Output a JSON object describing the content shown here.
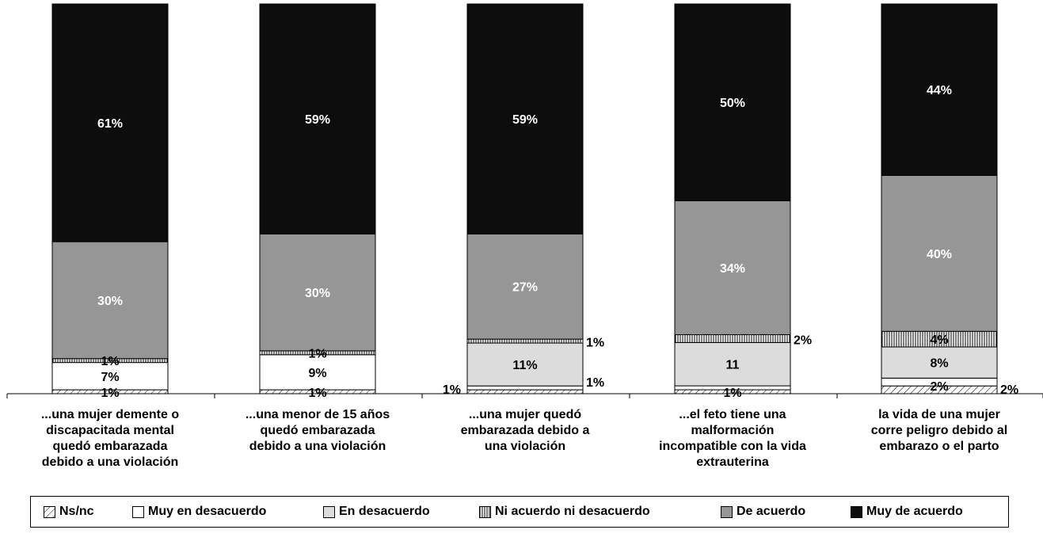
{
  "chart_data": {
    "type": "bar",
    "stacked": true,
    "categories": [
      "...una mujer demente o\ndiscapacitada mental\nquedó embarazada\ndebido a una violación",
      "...una menor de 15 años\nquedó embarazada\ndebido a una violación",
      "...una mujer quedó\nembarazada debido a\nuna violación",
      "...el feto tiene una\nmalformación\nincompatible con la vida\nextrauterina",
      "la vida de una mujer\ncorre peligro debido al\nembarazo o el parto"
    ],
    "series": [
      {
        "name": "Ns/nc",
        "values": [
          1,
          1,
          1,
          1,
          2
        ],
        "labels": [
          "1%",
          "1%",
          "1%",
          "1%",
          "2%"
        ],
        "color": "#ffffff",
        "pattern": "diagonal"
      },
      {
        "name": "Muy en desacuerdo",
        "values": [
          7,
          9,
          1,
          1,
          2
        ],
        "labels": [
          "7%",
          "9%",
          "1%",
          "",
          "2%"
        ],
        "color": "#ffffff"
      },
      {
        "name": "En desacuerdo",
        "values": [
          0,
          0,
          11,
          11,
          8
        ],
        "labels": [
          "",
          "",
          "11%",
          "11",
          "8%"
        ],
        "color": "#dcdcdc"
      },
      {
        "name": "Ni acuerdo ni desacuerdo",
        "values": [
          1,
          1,
          1,
          2,
          4
        ],
        "labels": [
          "1%",
          "1%",
          "1%",
          "2%",
          "4%"
        ],
        "color": "#ffffff",
        "pattern": "vertical"
      },
      {
        "name": "De acuerdo",
        "values": [
          30,
          30,
          27,
          34,
          40
        ],
        "labels": [
          "30%",
          "30%",
          "27%",
          "34%",
          "40%"
        ],
        "color": "#969696"
      },
      {
        "name": "Muy de acuerdo",
        "values": [
          61,
          59,
          59,
          50,
          44
        ],
        "labels": [
          "61%",
          "59%",
          "59%",
          "50%",
          "44%"
        ],
        "color": "#0d0d0d"
      }
    ],
    "ylim": [
      0,
      100
    ],
    "grid": false,
    "legend_position": "bottom"
  }
}
